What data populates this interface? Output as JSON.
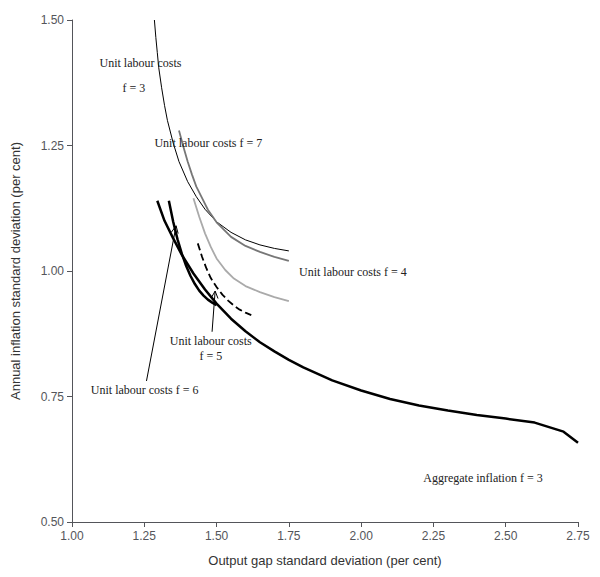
{
  "chart_data": {
    "type": "line",
    "xlabel": "Output gap standard deviation (per cent)",
    "ylabel": "Annual inflation standard deviation (per cent)",
    "xlim": [
      1.0,
      2.75
    ],
    "ylim": [
      0.5,
      1.5
    ],
    "xticks": [
      {
        "value": 1.0,
        "label": "1.00"
      },
      1.25,
      {
        "value": 1.5,
        "label": "1.50"
      },
      1.75,
      {
        "value": 2.0,
        "label": "2.00"
      },
      2.25,
      {
        "value": 2.5,
        "label": "2.50"
      },
      2.75
    ],
    "yticks": [
      {
        "value": 0.5,
        "label": "0.50"
      },
      0.75,
      {
        "value": 1.0,
        "label": "1.00"
      },
      1.25,
      {
        "value": 1.5,
        "label": "1.50"
      }
    ],
    "grid": false,
    "series": [
      {
        "color": "#000000",
        "line_style": "solid",
        "x": [
          1.295,
          1.32,
          1.35,
          1.38,
          1.42,
          1.46,
          1.5,
          1.55,
          1.6,
          1.65,
          1.7,
          1.75,
          1.8,
          1.9,
          2.0,
          2.1,
          2.2,
          2.3,
          2.4,
          2.5,
          2.6,
          2.7,
          2.75
        ],
        "values": [
          1.14,
          1.1,
          1.065,
          1.032,
          0.995,
          0.963,
          0.935,
          0.905,
          0.88,
          0.858,
          0.84,
          0.823,
          0.808,
          0.782,
          0.762,
          0.745,
          0.732,
          0.722,
          0.713,
          0.706,
          0.698,
          0.68,
          0.658
        ]
      },
      {
        "color": "#000000",
        "line_style": "solid",
        "x": [
          1.285,
          1.29,
          1.295,
          1.3,
          1.31,
          1.32,
          1.33,
          1.35,
          1.37,
          1.4,
          1.43,
          1.46,
          1.5,
          1.55,
          1.6,
          1.65,
          1.7,
          1.75
        ],
        "values": [
          1.5,
          1.465,
          1.435,
          1.405,
          1.365,
          1.33,
          1.3,
          1.255,
          1.218,
          1.178,
          1.148,
          1.123,
          1.098,
          1.077,
          1.062,
          1.052,
          1.045,
          1.04
        ]
      },
      {
        "color": "#777777",
        "line_style": "solid",
        "x": [
          1.37,
          1.385,
          1.4,
          1.415,
          1.43,
          1.45,
          1.47,
          1.5,
          1.55,
          1.6,
          1.65,
          1.7,
          1.75
        ],
        "values": [
          1.28,
          1.248,
          1.218,
          1.192,
          1.168,
          1.145,
          1.122,
          1.097,
          1.068,
          1.05,
          1.038,
          1.028,
          1.02
        ]
      },
      {
        "color": "#aaaaaa",
        "line_style": "solid",
        "x": [
          1.42,
          1.44,
          1.46,
          1.48,
          1.5,
          1.53,
          1.56,
          1.6,
          1.65,
          1.7,
          1.75
        ],
        "values": [
          1.145,
          1.108,
          1.075,
          1.048,
          1.025,
          1.002,
          0.985,
          0.97,
          0.958,
          0.948,
          0.94
        ]
      },
      {
        "color": "#000000",
        "line_style": "dashed",
        "x": [
          1.435,
          1.45,
          1.465,
          1.48,
          1.5,
          1.52,
          1.54,
          1.56,
          1.58,
          1.6,
          1.62
        ],
        "values": [
          1.055,
          1.028,
          1.005,
          0.986,
          0.968,
          0.953,
          0.941,
          0.931,
          0.923,
          0.917,
          0.912
        ]
      },
      {
        "color": "#000000",
        "line_style": "solid",
        "x": [
          1.335,
          1.35,
          1.365,
          1.38,
          1.395,
          1.41,
          1.425,
          1.44,
          1.455,
          1.47,
          1.485,
          1.5
        ],
        "values": [
          1.14,
          1.098,
          1.063,
          1.034,
          1.01,
          0.99,
          0.974,
          0.961,
          0.951,
          0.943,
          0.937,
          0.932
        ]
      }
    ],
    "annotations": [
      {
        "text": "Unit labour costs",
        "x": 1.095,
        "y": 1.415
      },
      {
        "text": "f = 3",
        "x": 1.175,
        "y": 1.365
      },
      {
        "text": "Unit labour costs f = 7",
        "x": 1.285,
        "y": 1.255
      },
      {
        "text": "Unit labour costs f = 4",
        "x": 1.785,
        "y": 0.998
      },
      {
        "text": "Unit labour costs\nf = 5",
        "x": 1.48,
        "y": 0.875,
        "arrow_x": 1.495,
        "arrow_y": 0.96
      },
      {
        "text": "Unit labour costs f = 6",
        "x": 1.065,
        "y": 0.762,
        "arrow_x": 1.36,
        "arrow_y": 1.09
      },
      {
        "text": "Aggregate inflation f = 3",
        "x": 2.215,
        "y": 0.588
      }
    ]
  }
}
